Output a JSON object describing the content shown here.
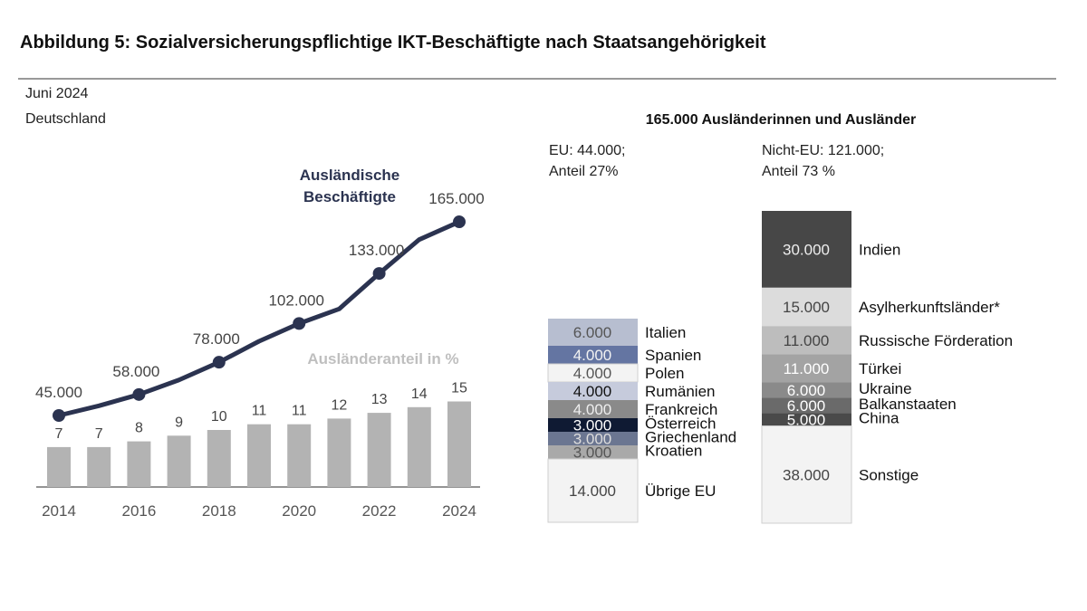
{
  "title": "Abbildung 5: Sozialversicherungspflichtige IKT-Beschäftigte nach Staatsangehörigkeit",
  "date": "Juni 2024",
  "region": "Deutschland",
  "colors": {
    "line": "#2b3350",
    "bars": "#b3b3b3",
    "share_label": "#bfbfbf",
    "axis": "#555555"
  },
  "chart_data": [
    {
      "type": "line+bar",
      "x": [
        2014,
        2015,
        2016,
        2017,
        2018,
        2019,
        2020,
        2021,
        2022,
        2023,
        2024
      ],
      "x_tick_labels": [
        "2014",
        "2016",
        "2018",
        "2020",
        "2022",
        "2024"
      ],
      "series": [
        {
          "name": "Ausländische Beschäftigte",
          "type": "line",
          "values": [
            45000,
            51000,
            58000,
            67000,
            78000,
            91000,
            102000,
            111000,
            133000,
            154000,
            165000
          ],
          "data_labels": {
            "2014": "45.000",
            "2016": "58.000",
            "2018": "78.000",
            "2020": "102.000",
            "2022": "133.000",
            "2024": "165.000"
          },
          "markers_at": [
            2014,
            2016,
            2018,
            2020,
            2022,
            2024
          ]
        },
        {
          "name": "Ausländeranteil in %",
          "type": "bar",
          "values": [
            7,
            7,
            8,
            9,
            10,
            11,
            11,
            12,
            13,
            14,
            15
          ]
        }
      ],
      "grid": false
    },
    {
      "type": "stacked-bar",
      "title": "165.000 Ausländerinnen und Ausländer",
      "columns": [
        {
          "header_line1": "EU: 44.000;",
          "header_line2": "Anteil 27%",
          "segments": [
            {
              "label": "Italien",
              "value": 6000,
              "value_label": "6.000",
              "color": "#b7bed0",
              "text_color": "#555555"
            },
            {
              "label": "Spanien",
              "value": 4000,
              "value_label": "4.000",
              "color": "#6475a2",
              "text_color": "#f2f2f2"
            },
            {
              "label": "Polen",
              "value": 4000,
              "value_label": "4.000",
              "color": "#f3f3f3",
              "text_color": "#555555"
            },
            {
              "label": "Rumänien",
              "value": 4000,
              "value_label": "4.000",
              "color": "#c6cbdc",
              "text_color": "#111111"
            },
            {
              "label": "Frankreich",
              "value": 4000,
              "value_label": "4.000",
              "color": "#8a8a8a",
              "text_color": "#eeeeee"
            },
            {
              "label": "Österreich",
              "value": 3000,
              "value_label": "3.000",
              "color": "#0f1a33",
              "text_color": "#ffffff"
            },
            {
              "label": "Griechenland",
              "value": 3000,
              "value_label": "3.000",
              "color": "#6b7691",
              "text_color": "#dddddd"
            },
            {
              "label": "Kroatien",
              "value": 3000,
              "value_label": "3.000",
              "color": "#a9a9a9",
              "text_color": "#555555"
            },
            {
              "label": "Übrige EU",
              "value": 14000,
              "value_label": "14.000",
              "color": "#f3f3f3",
              "text_color": "#444444"
            }
          ]
        },
        {
          "header_line1": "Nicht-EU: 121.000;",
          "header_line2": "Anteil 73 %",
          "segments": [
            {
              "label": "Indien",
              "value": 30000,
              "value_label": "30.000",
              "color": "#474747",
              "text_color": "#eeeeee"
            },
            {
              "label": "Asylherkunftsländer*",
              "value": 15000,
              "value_label": "15.000",
              "color": "#dcdcdc",
              "text_color": "#444444"
            },
            {
              "label": "Russische Förderation",
              "value": 11000,
              "value_label": "11.000",
              "color": "#bdbdbd",
              "text_color": "#444444"
            },
            {
              "label": "Türkei",
              "value": 11000,
              "value_label": "11.000",
              "color": "#a3a3a3",
              "text_color": "#ffffff"
            },
            {
              "label": "Ukraine",
              "value": 6000,
              "value_label": "6.000",
              "color": "#8a8a8a",
              "text_color": "#ffffff"
            },
            {
              "label": "Balkanstaaten",
              "value": 6000,
              "value_label": "6.000",
              "color": "#6a6a6a",
              "text_color": "#ffffff"
            },
            {
              "label": "China",
              "value": 5000,
              "value_label": "5.000",
              "color": "#4a4a4a",
              "text_color": "#ffffff"
            },
            {
              "label": "Sonstige",
              "value": 38000,
              "value_label": "38.000",
              "color": "#f3f3f3",
              "text_color": "#444444"
            }
          ]
        }
      ]
    }
  ]
}
